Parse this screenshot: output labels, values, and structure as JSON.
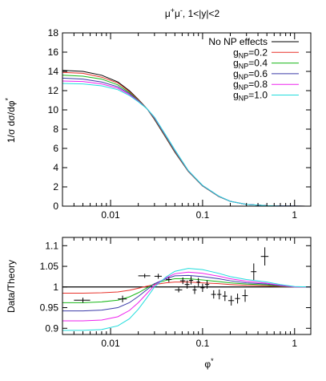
{
  "figure": {
    "title": "μ⁺μ⁻, 1<|y|<2",
    "x_axis_label": "φ*"
  },
  "chart_data": [
    {
      "panel": "top",
      "type": "line",
      "xscale": "log",
      "xlim": [
        0.003,
        1.5
      ],
      "ylim": [
        0,
        18
      ],
      "yticks": [
        0,
        2,
        4,
        6,
        8,
        10,
        12,
        14,
        16,
        18
      ],
      "xticks": [
        0.01,
        0.1,
        1
      ],
      "xtick_labels": [
        "0.01",
        "0.1",
        "1"
      ],
      "ylabel": "1/σ dσ/dφ*",
      "legend_position": "top-right",
      "x": [
        0.003,
        0.005,
        0.008,
        0.012,
        0.016,
        0.02,
        0.025,
        0.03,
        0.04,
        0.05,
        0.07,
        0.1,
        0.15,
        0.2,
        0.3,
        0.5,
        0.7,
        1.0,
        1.5
      ],
      "series": [
        {
          "name": "No NP effects",
          "color": "#000000",
          "values": [
            14.1,
            14.0,
            13.6,
            12.9,
            12.0,
            11.1,
            10.1,
            9.0,
            7.1,
            5.6,
            3.6,
            2.1,
            1.0,
            0.5,
            0.18,
            0.05,
            0.02,
            0.01,
            0.0
          ]
        },
        {
          "name": "g_NP=0.2",
          "color": "#e8322a",
          "values": [
            13.9,
            13.8,
            13.4,
            12.8,
            11.9,
            11.05,
            10.1,
            9.05,
            7.15,
            5.65,
            3.62,
            2.12,
            1.01,
            0.5,
            0.18,
            0.05,
            0.02,
            0.01,
            0.0
          ]
        },
        {
          "name": "g_NP=0.4",
          "color": "#19b819",
          "values": [
            13.6,
            13.5,
            13.2,
            12.6,
            11.8,
            11.0,
            10.1,
            9.1,
            7.2,
            5.7,
            3.64,
            2.13,
            1.02,
            0.5,
            0.18,
            0.05,
            0.02,
            0.01,
            0.0
          ]
        },
        {
          "name": "g_NP=0.6",
          "color": "#3a3aa8",
          "values": [
            13.3,
            13.2,
            12.9,
            12.4,
            11.7,
            10.95,
            10.1,
            9.15,
            7.25,
            5.75,
            3.66,
            2.14,
            1.03,
            0.5,
            0.18,
            0.05,
            0.02,
            0.01,
            0.0
          ]
        },
        {
          "name": "g_NP=0.8",
          "color": "#ee22ee",
          "values": [
            13.0,
            12.95,
            12.7,
            12.25,
            11.6,
            10.9,
            10.1,
            9.2,
            7.3,
            5.8,
            3.68,
            2.15,
            1.04,
            0.5,
            0.18,
            0.05,
            0.02,
            0.01,
            0.0
          ]
        },
        {
          "name": "g_NP=1.0",
          "color": "#22dddd",
          "values": [
            12.75,
            12.7,
            12.5,
            12.1,
            11.5,
            10.85,
            10.1,
            9.25,
            7.35,
            5.85,
            3.7,
            2.16,
            1.05,
            0.5,
            0.18,
            0.05,
            0.02,
            0.01,
            0.0
          ]
        }
      ]
    },
    {
      "panel": "bottom",
      "type": "line",
      "xscale": "log",
      "xlim": [
        0.003,
        1.5
      ],
      "ylim": [
        0.885,
        1.12
      ],
      "yticks": [
        0.9,
        0.95,
        1.0,
        1.05,
        1.1
      ],
      "ytick_labels": [
        "0.9",
        "0.95",
        "1",
        "1.05",
        "1.1"
      ],
      "xticks": [
        0.01,
        0.1,
        1
      ],
      "xtick_labels": [
        "0.01",
        "0.1",
        "1"
      ],
      "ylabel": "Data/Theory",
      "reference_line": 1.0,
      "x": [
        0.003,
        0.005,
        0.008,
        0.012,
        0.016,
        0.02,
        0.025,
        0.03,
        0.04,
        0.05,
        0.07,
        0.1,
        0.15,
        0.2,
        0.3,
        0.5,
        0.7,
        1.0,
        1.5
      ],
      "series": [
        {
          "name": "No NP effects",
          "color": "#000000",
          "values": [
            1.0,
            1.0,
            1.0,
            1.0,
            1.0,
            1.0,
            1.0,
            1.0,
            1.0,
            1.0,
            1.0,
            1.0,
            1.0,
            1.0,
            1.0,
            1.0,
            1.0,
            1.0,
            1.0
          ]
        },
        {
          "name": "g_NP=0.2",
          "color": "#e8322a",
          "values": [
            0.985,
            0.985,
            0.986,
            0.988,
            0.992,
            0.997,
            1.002,
            1.006,
            1.01,
            1.012,
            1.012,
            1.01,
            1.008,
            1.006,
            1.004,
            1.003,
            1.001,
            1.0,
            1.0
          ]
        },
        {
          "name": "g_NP=0.4",
          "color": "#19b819",
          "values": [
            0.962,
            0.962,
            0.964,
            0.968,
            0.976,
            0.986,
            0.998,
            1.008,
            1.016,
            1.02,
            1.02,
            1.017,
            1.013,
            1.01,
            1.007,
            1.005,
            1.002,
            1.0,
            1.0
          ]
        },
        {
          "name": "g_NP=0.6",
          "color": "#3a3aa8",
          "values": [
            0.942,
            0.942,
            0.944,
            0.95,
            0.962,
            0.977,
            0.994,
            1.008,
            1.02,
            1.027,
            1.028,
            1.025,
            1.02,
            1.015,
            1.01,
            1.007,
            1.003,
            1.0,
            1.0
          ]
        },
        {
          "name": "g_NP=0.8",
          "color": "#ee22ee",
          "values": [
            0.918,
            0.918,
            0.92,
            0.928,
            0.943,
            0.962,
            0.985,
            1.004,
            1.022,
            1.032,
            1.036,
            1.033,
            1.026,
            1.02,
            1.014,
            1.009,
            1.004,
            1.0,
            1.0
          ]
        },
        {
          "name": "g_NP=1.0",
          "color": "#22dddd",
          "values": [
            0.895,
            0.895,
            0.897,
            0.906,
            0.923,
            0.946,
            0.975,
            1.0,
            1.024,
            1.038,
            1.045,
            1.042,
            1.033,
            1.025,
            1.018,
            1.012,
            1.006,
            1.001,
            1.0
          ]
        }
      ],
      "data_points": [
        {
          "x": 0.005,
          "y": 0.968,
          "xerr": [
            0.004,
            0.006
          ],
          "yerr": 0.006
        },
        {
          "x": 0.0135,
          "y": 0.971,
          "xerr": [
            0.012,
            0.015
          ],
          "yerr": 0.008
        },
        {
          "x": 0.0235,
          "y": 1.027,
          "xerr": [
            0.02,
            0.027
          ],
          "yerr": 0.005
        },
        {
          "x": 0.033,
          "y": 1.026,
          "xerr": [
            0.03,
            0.036
          ],
          "yerr": 0.006
        },
        {
          "x": 0.043,
          "y": 1.018,
          "xerr": [
            0.04,
            0.046
          ],
          "yerr": 0.006
        },
        {
          "x": 0.055,
          "y": 0.993,
          "xerr": [
            0.05,
            0.06
          ],
          "yerr": 0.006
        },
        {
          "x": 0.061,
          "y": 1.015,
          "xerr": [
            0.057,
            0.065
          ],
          "yerr": 0.008
        },
        {
          "x": 0.068,
          "y": 1.006,
          "xerr": [
            0.064,
            0.072
          ],
          "yerr": 0.01
        },
        {
          "x": 0.075,
          "y": 1.016,
          "xerr": [
            0.071,
            0.079
          ],
          "yerr": 0.01
        },
        {
          "x": 0.082,
          "y": 0.993,
          "xerr": [
            0.078,
            0.086
          ],
          "yerr": 0.01
        },
        {
          "x": 0.09,
          "y": 1.012,
          "xerr": [
            0.086,
            0.094
          ],
          "yerr": 0.01
        },
        {
          "x": 0.1,
          "y": 0.998,
          "xerr": [
            0.095,
            0.105
          ],
          "yerr": 0.01
        },
        {
          "x": 0.112,
          "y": 1.006,
          "xerr": [
            0.106,
            0.118
          ],
          "yerr": 0.01
        },
        {
          "x": 0.132,
          "y": 0.982,
          "xerr": [
            0.124,
            0.14
          ],
          "yerr": 0.01
        },
        {
          "x": 0.152,
          "y": 0.982,
          "xerr": [
            0.144,
            0.16
          ],
          "yerr": 0.012
        },
        {
          "x": 0.175,
          "y": 0.978,
          "xerr": [
            0.165,
            0.185
          ],
          "yerr": 0.012
        },
        {
          "x": 0.205,
          "y": 0.967,
          "xerr": [
            0.19,
            0.22
          ],
          "yerr": 0.012
        },
        {
          "x": 0.24,
          "y": 0.972,
          "xerr": [
            0.225,
            0.255
          ],
          "yerr": 0.012
        },
        {
          "x": 0.29,
          "y": 0.979,
          "xerr": [
            0.27,
            0.31
          ],
          "yerr": 0.015
        },
        {
          "x": 0.36,
          "y": 1.037,
          "xerr": [
            0.335,
            0.385
          ],
          "yerr": 0.02
        },
        {
          "x": 0.475,
          "y": 1.074,
          "xerr": [
            0.43,
            0.52
          ],
          "yerr": 0.022
        }
      ]
    }
  ]
}
